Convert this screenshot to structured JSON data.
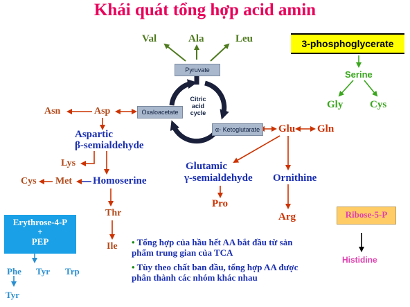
{
  "title": "Khái quát tổng hợp acid amin",
  "pyruvate_group": {
    "box": "Pyruvate",
    "products": [
      "Val",
      "Ala",
      "Leu"
    ]
  },
  "tca": {
    "oxaloacetate": "Oxaloacetate",
    "ketoglutarate": "α- Ketoglutarate",
    "cycle_label_lines": [
      "Citric",
      "acid",
      "cycle"
    ]
  },
  "aspartate_family": {
    "asn": "Asn",
    "asp": "Asp",
    "semialdehyde_line1": "Aspartic",
    "semialdehyde_line2": "β-semialdehyde",
    "lys": "Lys",
    "homoserine": "Homoserine",
    "met": "Met",
    "cys": "Cys",
    "thr": "Thr",
    "ile": "Ile"
  },
  "glutamate_family": {
    "glu": "Glu",
    "gln": "Gln",
    "semialdehyde_line1": "Glutamic",
    "semialdehyde_line2": "γ-semialdehyde",
    "pro": "Pro",
    "ornithine": "Ornithine",
    "arg": "Arg"
  },
  "phosphoglycerate_group": {
    "box": "3-phosphoglycerate",
    "serine": "Serine",
    "gly": "Gly",
    "cys": "Cys"
  },
  "aromatic_group": {
    "box_line1": "Erythrose-4-P",
    "box_plus": "+",
    "box_line2": "PEP",
    "phe": "Phe",
    "tyr": "Tyr",
    "trp": "Trp",
    "tyr_from_phe": "Tyr"
  },
  "ribose_group": {
    "box": "Ribose-5-P",
    "histidine": "Histidine"
  },
  "notes": [
    {
      "bullet": "•",
      "text": "Tổng hợp của hầu hết AA bắt đầu từ sản phẩm trung gian của TCA"
    },
    {
      "bullet": "•",
      "text": "Tùy theo chất ban đầu, tổng hợp AA được phân thành các nhóm khác nhau"
    }
  ],
  "colors": {
    "title": "#e8005a",
    "green": "#4e7a1e",
    "light_green": "#3aa61e",
    "red": "#cc3300",
    "blue": "#1a2fb0",
    "light_blue": "#2a8fd0",
    "pink": "#e040b0",
    "cycle": "#1a1f3a"
  }
}
